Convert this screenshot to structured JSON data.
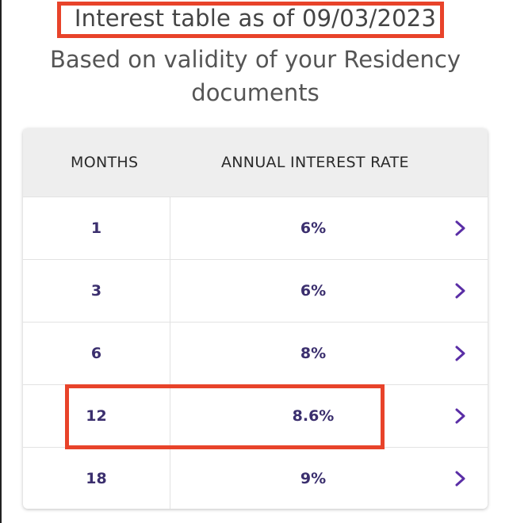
{
  "header": {
    "title": "Interest table as of 09/03/2023",
    "subtitle_line1": "Based on validity of your Residency",
    "subtitle_line2": "documents"
  },
  "table": {
    "columns": [
      "MONTHS",
      "ANNUAL INTEREST RATE"
    ],
    "rows": [
      {
        "months": "1",
        "rate": "6%"
      },
      {
        "months": "3",
        "rate": "6%"
      },
      {
        "months": "6",
        "rate": "8%"
      },
      {
        "months": "12",
        "rate": "8.6%"
      },
      {
        "months": "18",
        "rate": "9%"
      }
    ],
    "highlighted_row_months": "12",
    "row_icon": "chevron-right-icon"
  },
  "colors": {
    "highlight_border": "#e8432a",
    "value_text": "#3b2f6e",
    "chevron": "#5a2ea6",
    "header_bg": "#eeeeee"
  }
}
